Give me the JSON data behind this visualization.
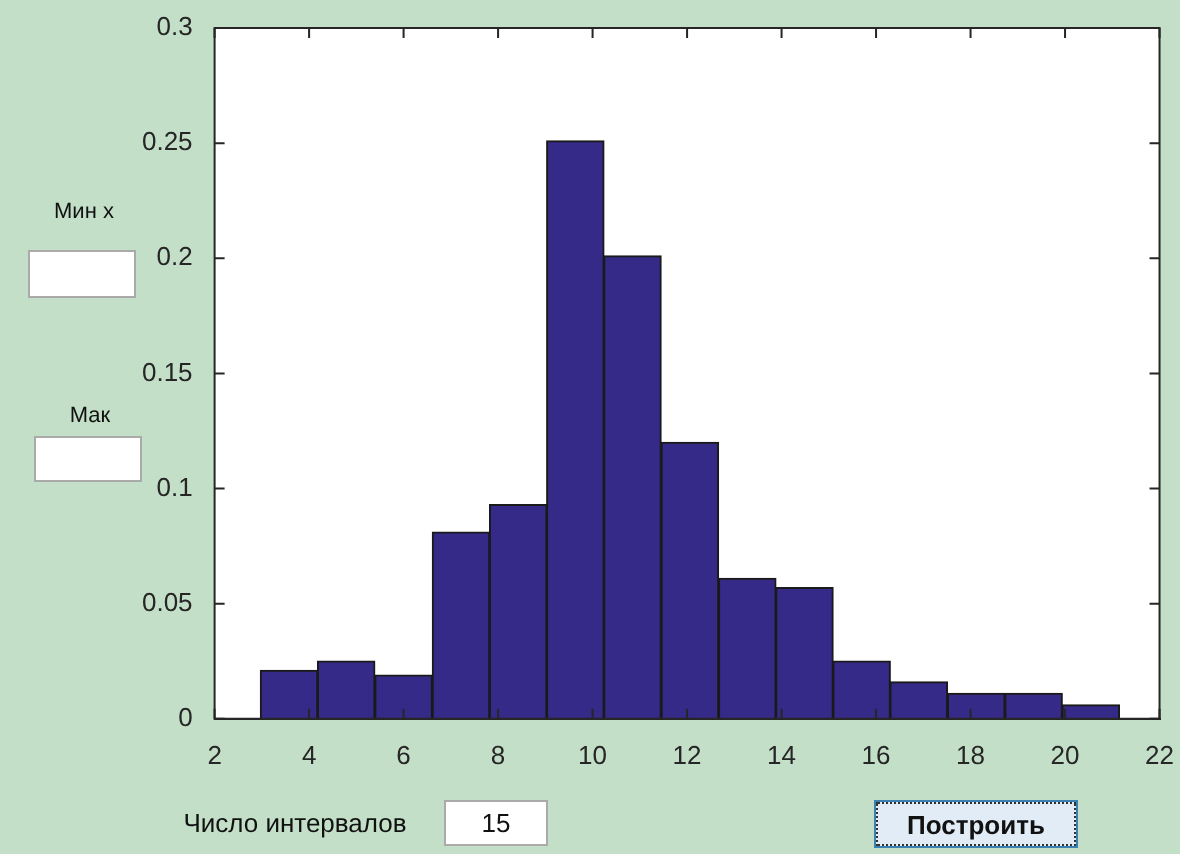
{
  "chart_data": {
    "type": "histogram",
    "bins": [
      2.97,
      4.18,
      5.39,
      6.61,
      7.82,
      9.03,
      10.24,
      11.45,
      12.67,
      13.88,
      15.09,
      16.3,
      17.51,
      18.73,
      19.94,
      21.15
    ],
    "values": [
      0.021,
      0.025,
      0.019,
      0.081,
      0.093,
      0.251,
      0.201,
      0.12,
      0.061,
      0.057,
      0.025,
      0.016,
      0.011,
      0.011,
      0.006
    ],
    "color": "#352a87",
    "xlim": [
      2,
      22
    ],
    "xticks": [
      2,
      4,
      6,
      8,
      10,
      12,
      14,
      16,
      18,
      20,
      22
    ],
    "ylim": [
      0,
      0.3
    ],
    "yticks": [
      0,
      0.05,
      0.1,
      0.15,
      0.2,
      0.25,
      0.3
    ],
    "annotations": [
      "Мин x",
      "Мак",
      "Число интервалов",
      "15",
      "Построить"
    ]
  }
}
